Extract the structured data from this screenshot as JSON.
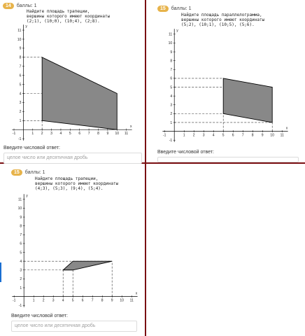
{
  "tasks": [
    {
      "number": "14",
      "points_label": "баллы: 1",
      "problem": "Найдите площадь трапеции,\nвершины которого имеют координаты\n(2;1), (10;0), (10;4), (2;8).",
      "answer_label": "Введите числовой ответ:",
      "placeholder": "целое число или десятичная дробь",
      "chart_data": {
        "type": "polygon",
        "polygon": [
          [
            2,
            1
          ],
          [
            10,
            0
          ],
          [
            10,
            4
          ],
          [
            2,
            8
          ]
        ],
        "x_ticks": [
          -1,
          1,
          2,
          3,
          4,
          5,
          6,
          7,
          8,
          9,
          10,
          11
        ],
        "y_ticks": [
          -1,
          1,
          2,
          3,
          4,
          5,
          6,
          7,
          8,
          9,
          10,
          11
        ],
        "xlabel": "x",
        "ylabel": "y",
        "dashed_x": [
          2,
          10
        ],
        "dashed_y": [
          1,
          4,
          8
        ],
        "fill": "#888888"
      }
    },
    {
      "number": "15",
      "points_label": "баллы: 1",
      "problem": "Найдите площадь параллелограмма,\nвершины которого имеют координаты\n(5;2), (10;1), (10;5), (5;6).",
      "answer_label": "Введите числовой ответ:",
      "placeholder": "",
      "chart_data": {
        "type": "polygon",
        "polygon": [
          [
            5,
            2
          ],
          [
            10,
            1
          ],
          [
            10,
            5
          ],
          [
            5,
            6
          ]
        ],
        "x_ticks": [
          -1,
          1,
          2,
          3,
          4,
          5,
          6,
          7,
          8,
          9,
          10,
          11
        ],
        "y_ticks": [
          -1,
          1,
          2,
          3,
          4,
          5,
          6,
          7,
          8,
          9,
          10,
          11
        ],
        "xlabel": "x",
        "ylabel": "y",
        "dashed_x": [
          5,
          10
        ],
        "dashed_y": [
          1,
          2,
          5,
          6
        ],
        "fill": "#888888"
      }
    },
    {
      "number": "15",
      "points_label": "баллы: 1",
      "problem": "Найдите площадь трапеции,\nвершины которого имеют координаты\n(4;3), (5;3), (9;4), (5;4).",
      "answer_label": "Введите числовой ответ:",
      "placeholder": "целое число или десятичная дробь",
      "chart_data": {
        "type": "polygon",
        "polygon": [
          [
            4,
            3
          ],
          [
            5,
            3
          ],
          [
            9,
            4
          ],
          [
            5,
            4
          ]
        ],
        "x_ticks": [
          -1,
          1,
          2,
          3,
          4,
          5,
          6,
          7,
          8,
          9,
          10,
          11
        ],
        "y_ticks": [
          -1,
          1,
          2,
          3,
          4,
          5,
          6,
          7,
          8,
          9,
          10,
          11
        ],
        "xlabel": "x",
        "ylabel": "y",
        "dashed_x": [
          4,
          5,
          9
        ],
        "dashed_y": [
          3,
          4
        ],
        "fill": "#888888"
      }
    }
  ]
}
